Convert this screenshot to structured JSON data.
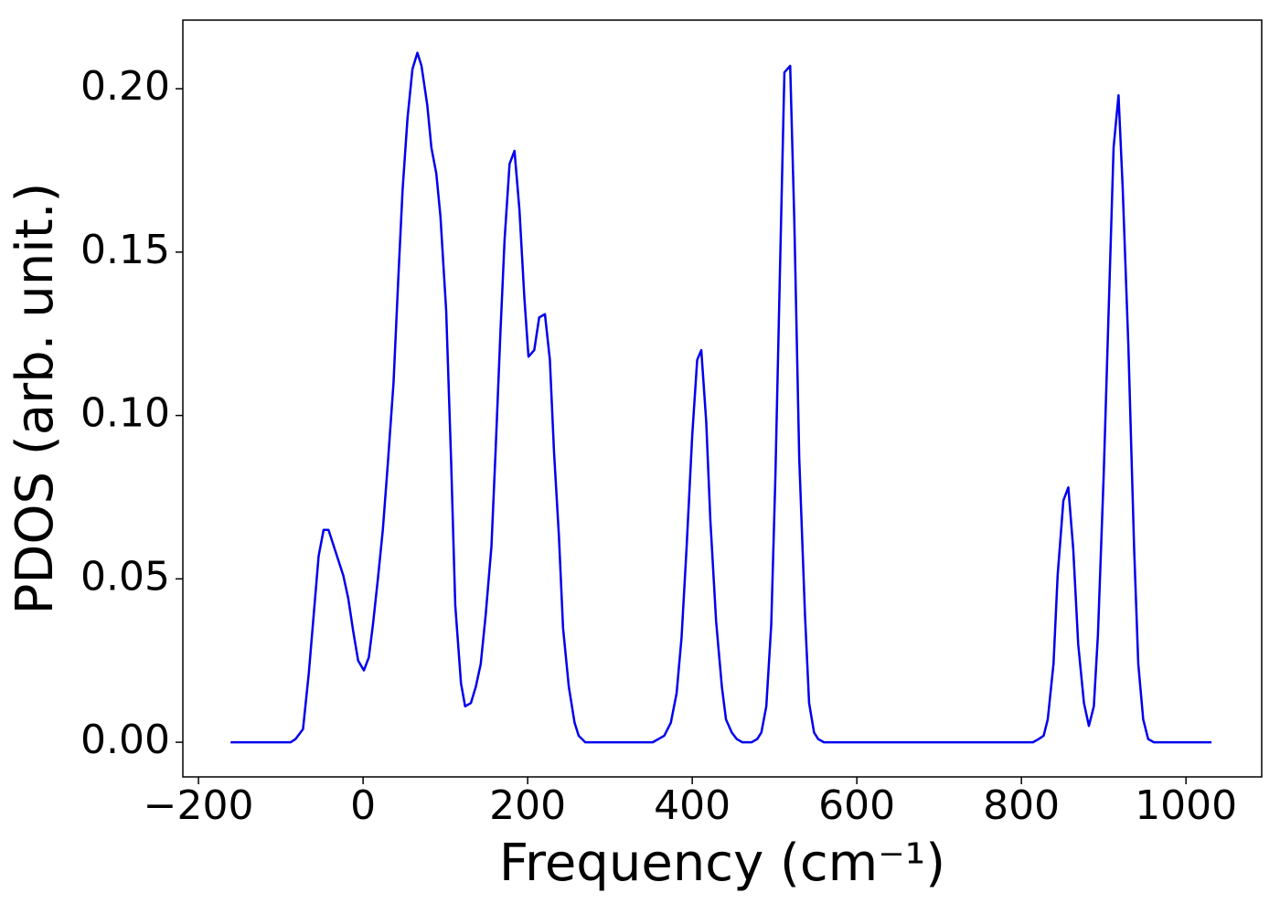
{
  "chart_data": {
    "type": "line",
    "xlabel": "Frequency (cm⁻¹)",
    "ylabel": "PDOS (arb. unit.)",
    "xlim": [
      -219,
      1092
    ],
    "ylim": [
      -0.0106,
      0.221
    ],
    "xticks": [
      {
        "value": -200,
        "label": "−200"
      },
      0,
      200,
      400,
      600,
      800,
      1000
    ],
    "yticks": [
      {
        "value": 0,
        "label": "0.00"
      },
      {
        "value": 0.05,
        "label": "0.05"
      },
      {
        "value": 0.1,
        "label": "0.10"
      },
      {
        "value": 0.15,
        "label": "0.15"
      },
      {
        "value": 0.2,
        "label": "0.20"
      }
    ],
    "x": [
      -161,
      -88,
      -82,
      -73,
      -66,
      -54,
      -48,
      -42,
      -24,
      -18,
      -12,
      -6,
      1,
      7,
      12,
      18,
      24,
      30,
      37,
      43,
      48,
      54,
      60,
      66,
      71,
      78,
      83,
      89,
      94,
      101,
      107,
      112,
      119,
      124,
      131,
      137,
      143,
      149,
      156,
      161,
      167,
      172,
      178,
      184,
      190,
      196,
      201,
      208,
      214,
      221,
      227,
      232,
      238,
      243,
      250,
      257,
      262,
      270,
      279,
      352,
      359,
      366,
      374,
      381,
      387,
      393,
      400,
      406,
      411,
      417,
      422,
      429,
      436,
      441,
      448,
      454,
      461,
      472,
      479,
      484,
      490,
      496,
      501,
      507,
      512,
      519,
      524,
      530,
      537,
      542,
      548,
      553,
      560,
      814,
      821,
      827,
      832,
      839,
      844,
      851,
      857,
      863,
      869,
      876,
      882,
      888,
      893,
      900,
      906,
      912,
      918,
      923,
      930,
      937,
      942,
      948,
      954,
      961,
      1031
    ],
    "series": [
      {
        "name": "PDOS",
        "color": "#0000ee",
        "values": [
          0,
          0,
          0.001,
          0.004,
          0.021,
          0.057,
          0.065,
          0.065,
          0.051,
          0.044,
          0.034,
          0.025,
          0.022,
          0.026,
          0.036,
          0.05,
          0.065,
          0.085,
          0.11,
          0.143,
          0.169,
          0.191,
          0.206,
          0.211,
          0.207,
          0.195,
          0.182,
          0.174,
          0.161,
          0.132,
          0.086,
          0.042,
          0.018,
          0.011,
          0.012,
          0.017,
          0.024,
          0.039,
          0.06,
          0.089,
          0.126,
          0.154,
          0.177,
          0.181,
          0.163,
          0.136,
          0.118,
          0.12,
          0.13,
          0.131,
          0.117,
          0.089,
          0.063,
          0.035,
          0.017,
          0.006,
          0.002,
          0,
          0,
          0,
          0.001,
          0.002,
          0.006,
          0.015,
          0.032,
          0.059,
          0.094,
          0.117,
          0.12,
          0.098,
          0.068,
          0.037,
          0.017,
          0.007,
          0.003,
          0.001,
          0,
          0,
          0.001,
          0.003,
          0.011,
          0.036,
          0.081,
          0.149,
          0.205,
          0.207,
          0.16,
          0.087,
          0.039,
          0.012,
          0.003,
          0.001,
          0,
          0,
          0.001,
          0.002,
          0.007,
          0.024,
          0.051,
          0.074,
          0.078,
          0.059,
          0.03,
          0.012,
          0.005,
          0.011,
          0.033,
          0.082,
          0.132,
          0.182,
          0.198,
          0.17,
          0.121,
          0.059,
          0.024,
          0.007,
          0.001,
          0,
          0
        ]
      }
    ]
  }
}
